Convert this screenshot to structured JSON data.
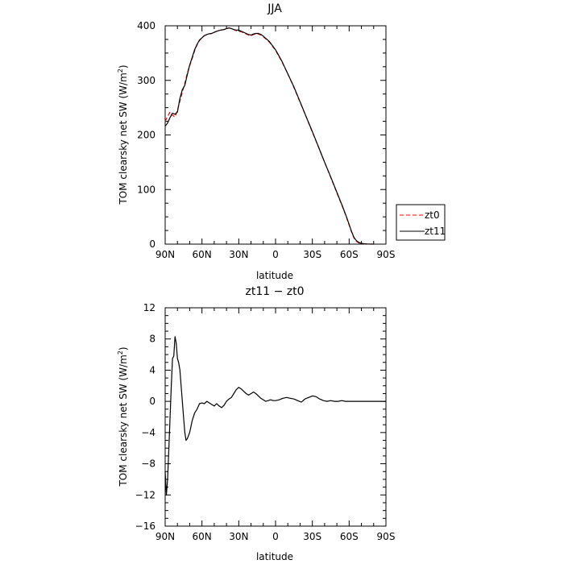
{
  "chart_data": [
    {
      "type": "line",
      "title": "JJA",
      "xlabel": "latitude",
      "ylabel": "TOM clearsky net SW (W/m²)",
      "ylabel_main": "TOM clearsky net SW (W/m",
      "ylabel_sup": "2",
      "ylabel_close": ")",
      "xlim": [
        90,
        -90
      ],
      "ylim": [
        0,
        400
      ],
      "x_ticks": [
        90,
        60,
        30,
        0,
        -30,
        -60,
        -90
      ],
      "x_tick_labels": [
        "90N",
        "60N",
        "30N",
        "0",
        "30S",
        "60S",
        "90S"
      ],
      "y_ticks": [
        0,
        100,
        200,
        300,
        400
      ],
      "y_tick_labels": [
        "0",
        "100",
        "200",
        "300",
        "400"
      ],
      "legend": {
        "placement": "right"
      },
      "series": [
        {
          "name": "zt0",
          "color": "#ff0000",
          "dash": "dashed",
          "x": [
            90,
            88,
            86,
            84,
            82,
            80,
            78,
            76,
            74,
            72,
            70,
            68,
            66,
            64,
            62,
            60,
            58,
            55,
            52,
            50,
            48,
            45,
            42,
            40,
            38,
            36,
            34,
            32,
            30,
            28,
            26,
            24,
            22,
            20,
            18,
            16,
            14,
            12,
            10,
            8,
            5,
            0,
            -5,
            -10,
            -15,
            -20,
            -25,
            -30,
            -35,
            -40,
            -45,
            -50,
            -55,
            -58,
            -60,
            -62,
            -64,
            -66,
            -68,
            -70,
            -72,
            -75,
            -80
          ],
          "y": [
            225,
            234,
            242,
            236,
            233,
            245,
            262,
            278,
            295,
            313,
            327,
            340,
            354,
            365,
            373,
            378,
            382,
            385,
            386,
            388,
            390,
            392,
            393,
            395,
            396,
            395,
            393,
            391,
            390,
            389,
            387,
            385,
            383,
            382,
            384,
            385,
            385,
            383,
            380,
            376,
            370,
            355,
            335,
            312,
            287,
            260,
            233,
            205,
            178,
            150,
            122,
            94,
            66,
            48,
            35,
            22,
            11,
            5,
            2,
            1,
            0.5,
            0.2,
            0
          ]
        },
        {
          "name": "zt11",
          "color": "#000000",
          "dash": "solid",
          "x": [
            90,
            88,
            86,
            84,
            82,
            80,
            78,
            76,
            74,
            72,
            70,
            68,
            66,
            64,
            62,
            60,
            58,
            55,
            52,
            50,
            48,
            45,
            42,
            40,
            38,
            36,
            34,
            32,
            30,
            28,
            26,
            24,
            22,
            20,
            18,
            16,
            14,
            12,
            10,
            8,
            5,
            0,
            -5,
            -10,
            -15,
            -20,
            -25,
            -30,
            -35,
            -40,
            -45,
            -50,
            -55,
            -58,
            -60,
            -62,
            -64,
            -66,
            -68,
            -70,
            -72,
            -75,
            -80
          ],
          "y": [
            216,
            222,
            232,
            240,
            238,
            242,
            267,
            283,
            291,
            310,
            328,
            342,
            356,
            366,
            374,
            378,
            382,
            385,
            386,
            388,
            390,
            392,
            393,
            395,
            396,
            395,
            393,
            392,
            392,
            390,
            388,
            386,
            384,
            383,
            385,
            386,
            386,
            384,
            381,
            377,
            371,
            356,
            336,
            312,
            288,
            261,
            233,
            206,
            178,
            150,
            123,
            95,
            67,
            49,
            36,
            23,
            12,
            6,
            3,
            1.5,
            0.8,
            0.3,
            0
          ]
        }
      ]
    },
    {
      "type": "line",
      "title": "zt11 − zt0",
      "xlabel": "latitude",
      "ylabel": "TOM clearsky net SW (W/m²)",
      "ylabel_main": "TOM clearsky net SW (W/m",
      "ylabel_sup": "2",
      "ylabel_close": ")",
      "xlim": [
        90,
        -90
      ],
      "ylim": [
        -16,
        12
      ],
      "x_ticks": [
        90,
        60,
        30,
        0,
        -30,
        -60,
        -90
      ],
      "x_tick_labels": [
        "90N",
        "60N",
        "30N",
        "0",
        "30S",
        "60S",
        "90S"
      ],
      "y_ticks": [
        -16,
        -12,
        -8,
        -4,
        0,
        4,
        8,
        12
      ],
      "y_tick_labels": [
        "−16",
        "−12",
        "−8",
        "−4",
        "0",
        "4",
        "8",
        "12"
      ],
      "series": [
        {
          "color": "#000000",
          "dash": "solid",
          "x": [
            90,
            89,
            88,
            87,
            86,
            85,
            84,
            83,
            82,
            81,
            80,
            79,
            78,
            77,
            76,
            75,
            74,
            73,
            72,
            70,
            68,
            66,
            64,
            62,
            60,
            58,
            56,
            54,
            52,
            50,
            48,
            46,
            44,
            42,
            40,
            38,
            36,
            34,
            32,
            30,
            28,
            26,
            24,
            22,
            20,
            18,
            16,
            14,
            12,
            10,
            8,
            6,
            4,
            2,
            0,
            -3,
            -6,
            -9,
            -12,
            -15,
            -18,
            -21,
            -24,
            -27,
            -30,
            -33,
            -36,
            -39,
            -42,
            -45,
            -48,
            -51,
            -54,
            -57,
            -60,
            -63,
            -66,
            -69,
            -72,
            -75,
            -80,
            -85,
            -90
          ],
          "y": [
            -9,
            -12,
            -10,
            -6,
            -2,
            2,
            5.5,
            5.8,
            8.3,
            7.5,
            5.5,
            5,
            4,
            2,
            0,
            -2,
            -4,
            -5,
            -4.8,
            -4,
            -2.5,
            -1.5,
            -1,
            -0.3,
            -0.2,
            -0.3,
            0,
            -0.2,
            -0.4,
            -0.6,
            -0.3,
            -0.6,
            -0.8,
            -0.5,
            0,
            0.3,
            0.5,
            1.0,
            1.5,
            1.8,
            1.6,
            1.3,
            1.0,
            0.8,
            1.0,
            1.2,
            1.0,
            0.7,
            0.4,
            0.2,
            0.0,
            0.1,
            0.2,
            0.1,
            0.1,
            0.2,
            0.4,
            0.5,
            0.4,
            0.3,
            0.1,
            -0.1,
            0.3,
            0.5,
            0.7,
            0.6,
            0.3,
            0.1,
            0.0,
            0.1,
            0.0,
            0.0,
            0.1,
            0.0,
            0.0,
            0.0,
            0.0,
            0.0,
            0.0,
            0.0,
            0.0,
            0.0,
            0.0
          ]
        }
      ]
    }
  ]
}
